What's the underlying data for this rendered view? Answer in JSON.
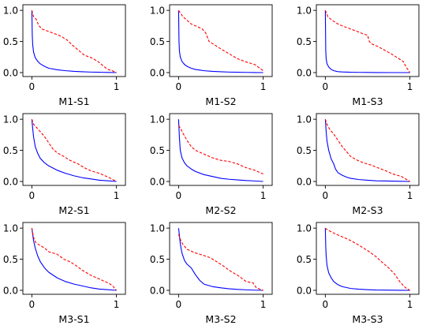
{
  "chart_data": [
    {
      "type": "line",
      "title": "M1-S1",
      "xlim": [
        0,
        1
      ],
      "ylim": [
        0,
        1
      ],
      "grid": false,
      "x_ticks": [
        "0",
        "1"
      ],
      "y_ticks": [
        "0.0",
        "0.5",
        "1.0"
      ],
      "series": [
        {
          "style": "solid",
          "color": "#0000ff",
          "x": [
            0,
            0.005,
            0.01,
            0.02,
            0.04,
            0.07,
            0.1,
            0.15,
            0.2,
            0.3,
            0.4,
            0.5,
            0.6,
            0.7,
            0.8,
            0.9,
            1.0
          ],
          "y": [
            1.0,
            0.6,
            0.45,
            0.33,
            0.24,
            0.18,
            0.14,
            0.1,
            0.07,
            0.045,
            0.03,
            0.02,
            0.013,
            0.008,
            0.005,
            0.002,
            0.0
          ]
        },
        {
          "style": "dashed",
          "color": "#ff0000",
          "x": [
            0,
            0.02,
            0.05,
            0.08,
            0.12,
            0.2,
            0.28,
            0.35,
            0.42,
            0.48,
            0.55,
            0.62,
            0.7,
            0.78,
            0.85,
            0.9,
            0.95,
            1.0
          ],
          "y": [
            1.0,
            0.9,
            0.86,
            0.76,
            0.7,
            0.66,
            0.62,
            0.58,
            0.52,
            0.44,
            0.36,
            0.28,
            0.24,
            0.18,
            0.1,
            0.05,
            0.03,
            0.0
          ]
        }
      ]
    },
    {
      "type": "line",
      "title": "M1-S2",
      "xlim": [
        0,
        1
      ],
      "ylim": [
        0,
        1
      ],
      "grid": false,
      "x_ticks": [
        "0",
        "1"
      ],
      "y_ticks": [
        "0.0",
        "0.5",
        "1.0"
      ],
      "series": [
        {
          "style": "solid",
          "color": "#0000ff",
          "x": [
            0,
            0.005,
            0.01,
            0.02,
            0.04,
            0.07,
            0.1,
            0.15,
            0.2,
            0.3,
            0.4,
            0.5,
            0.6,
            0.7,
            0.8,
            0.9,
            1.0
          ],
          "y": [
            1.0,
            0.5,
            0.35,
            0.25,
            0.18,
            0.13,
            0.1,
            0.07,
            0.05,
            0.03,
            0.02,
            0.013,
            0.008,
            0.005,
            0.003,
            0.001,
            0.0
          ]
        },
        {
          "style": "dashed",
          "color": "#ff0000",
          "x": [
            0,
            0.02,
            0.05,
            0.1,
            0.15,
            0.22,
            0.28,
            0.32,
            0.36,
            0.42,
            0.5,
            0.6,
            0.7,
            0.8,
            0.9,
            1.0
          ],
          "y": [
            1.0,
            0.96,
            0.9,
            0.84,
            0.78,
            0.74,
            0.7,
            0.64,
            0.5,
            0.45,
            0.38,
            0.3,
            0.22,
            0.17,
            0.13,
            0.03
          ]
        }
      ]
    },
    {
      "type": "line",
      "title": "M1-S3",
      "xlim": [
        0,
        1
      ],
      "ylim": [
        0,
        1
      ],
      "grid": false,
      "x_ticks": [
        "0",
        "1"
      ],
      "y_ticks": [
        "0.0",
        "0.5",
        "1.0"
      ],
      "series": [
        {
          "style": "solid",
          "color": "#0000ff",
          "x": [
            0,
            0.005,
            0.01,
            0.02,
            0.04,
            0.07,
            0.1,
            0.15,
            0.2,
            0.3,
            0.4,
            0.5,
            0.6,
            0.8,
            1.0
          ],
          "y": [
            1.0,
            0.35,
            0.22,
            0.14,
            0.09,
            0.05,
            0.03,
            0.015,
            0.01,
            0.005,
            0.003,
            0.002,
            0.001,
            0.0,
            0.0
          ]
        },
        {
          "style": "dashed",
          "color": "#ff0000",
          "x": [
            0,
            0.03,
            0.08,
            0.15,
            0.22,
            0.3,
            0.38,
            0.45,
            0.5,
            0.52,
            0.55,
            0.62,
            0.7,
            0.78,
            0.85,
            0.92,
            0.96,
            1.0
          ],
          "y": [
            1.0,
            0.9,
            0.84,
            0.78,
            0.74,
            0.7,
            0.66,
            0.62,
            0.6,
            0.5,
            0.46,
            0.42,
            0.36,
            0.3,
            0.24,
            0.18,
            0.08,
            0.0
          ]
        }
      ]
    },
    {
      "type": "line",
      "title": "M2-S1",
      "xlim": [
        0,
        1
      ],
      "ylim": [
        0,
        1
      ],
      "grid": false,
      "x_ticks": [
        "0",
        "1"
      ],
      "y_ticks": [
        "0.0",
        "0.5",
        "1.0"
      ],
      "series": [
        {
          "style": "solid",
          "color": "#0000ff",
          "x": [
            0,
            0.01,
            0.02,
            0.04,
            0.07,
            0.1,
            0.15,
            0.2,
            0.3,
            0.4,
            0.5,
            0.6,
            0.7,
            0.8,
            0.9,
            1.0
          ],
          "y": [
            1.0,
            0.85,
            0.72,
            0.56,
            0.45,
            0.37,
            0.3,
            0.25,
            0.18,
            0.13,
            0.09,
            0.06,
            0.04,
            0.02,
            0.01,
            0.0
          ]
        },
        {
          "style": "dashed",
          "color": "#ff0000",
          "x": [
            0,
            0.02,
            0.06,
            0.1,
            0.15,
            0.2,
            0.25,
            0.3,
            0.38,
            0.45,
            0.55,
            0.62,
            0.7,
            0.8,
            0.9,
            1.0
          ],
          "y": [
            1.0,
            0.92,
            0.86,
            0.8,
            0.72,
            0.62,
            0.52,
            0.46,
            0.4,
            0.34,
            0.28,
            0.22,
            0.17,
            0.13,
            0.07,
            0.0
          ]
        }
      ]
    },
    {
      "type": "line",
      "title": "M2-S2",
      "xlim": [
        0,
        1
      ],
      "ylim": [
        0,
        1
      ],
      "grid": false,
      "x_ticks": [
        "0",
        "1"
      ],
      "y_ticks": [
        "0.0",
        "0.5",
        "1.0"
      ],
      "series": [
        {
          "style": "solid",
          "color": "#0000ff",
          "x": [
            0,
            0.01,
            0.02,
            0.04,
            0.07,
            0.1,
            0.15,
            0.2,
            0.3,
            0.4,
            0.5,
            0.6,
            0.7,
            0.8,
            0.9,
            1.0
          ],
          "y": [
            1.0,
            0.7,
            0.5,
            0.38,
            0.3,
            0.25,
            0.2,
            0.16,
            0.11,
            0.08,
            0.05,
            0.035,
            0.025,
            0.015,
            0.008,
            0.0
          ]
        },
        {
          "style": "dashed",
          "color": "#ff0000",
          "x": [
            0,
            0.02,
            0.05,
            0.1,
            0.15,
            0.2,
            0.3,
            0.4,
            0.5,
            0.6,
            0.7,
            0.8,
            0.9,
            1.0
          ],
          "y": [
            0.9,
            0.86,
            0.78,
            0.66,
            0.56,
            0.5,
            0.44,
            0.38,
            0.34,
            0.32,
            0.28,
            0.22,
            0.18,
            0.12
          ]
        }
      ]
    },
    {
      "type": "line",
      "title": "M2-S3",
      "xlim": [
        0,
        1
      ],
      "ylim": [
        0,
        1
      ],
      "grid": false,
      "x_ticks": [
        "0",
        "1"
      ],
      "y_ticks": [
        "0.0",
        "0.5",
        "1.0"
      ],
      "series": [
        {
          "style": "solid",
          "color": "#0000ff",
          "x": [
            0,
            0.01,
            0.02,
            0.04,
            0.07,
            0.1,
            0.12,
            0.15,
            0.2,
            0.25,
            0.3,
            0.4,
            0.5,
            0.6,
            0.8,
            1.0
          ],
          "y": [
            1.0,
            0.8,
            0.65,
            0.5,
            0.36,
            0.28,
            0.2,
            0.14,
            0.1,
            0.07,
            0.05,
            0.03,
            0.02,
            0.01,
            0.005,
            0.0
          ]
        },
        {
          "style": "dashed",
          "color": "#ff0000",
          "x": [
            0,
            0.02,
            0.05,
            0.1,
            0.15,
            0.2,
            0.25,
            0.3,
            0.38,
            0.45,
            0.55,
            0.62,
            0.7,
            0.8,
            0.9,
            1.0
          ],
          "y": [
            1.0,
            0.92,
            0.84,
            0.76,
            0.66,
            0.56,
            0.48,
            0.4,
            0.34,
            0.3,
            0.26,
            0.22,
            0.18,
            0.12,
            0.08,
            0.0
          ]
        }
      ]
    },
    {
      "type": "line",
      "title": "M3-S1",
      "xlim": [
        0,
        1
      ],
      "ylim": [
        0,
        1
      ],
      "grid": false,
      "x_ticks": [
        "0",
        "1"
      ],
      "y_ticks": [
        "0.0",
        "0.5",
        "1.0"
      ],
      "series": [
        {
          "style": "solid",
          "color": "#0000ff",
          "x": [
            0,
            0.01,
            0.02,
            0.04,
            0.07,
            0.1,
            0.15,
            0.2,
            0.3,
            0.4,
            0.5,
            0.6,
            0.7,
            0.8,
            0.9,
            1.0
          ],
          "y": [
            1.0,
            0.9,
            0.8,
            0.68,
            0.55,
            0.46,
            0.36,
            0.29,
            0.2,
            0.14,
            0.1,
            0.07,
            0.04,
            0.02,
            0.01,
            0.0
          ]
        },
        {
          "style": "dashed",
          "color": "#ff0000",
          "x": [
            0,
            0.02,
            0.05,
            0.1,
            0.15,
            0.2,
            0.3,
            0.38,
            0.45,
            0.52,
            0.6,
            0.7,
            0.8,
            0.9,
            0.95,
            1.0
          ],
          "y": [
            1.0,
            0.85,
            0.76,
            0.72,
            0.68,
            0.62,
            0.58,
            0.5,
            0.46,
            0.4,
            0.32,
            0.24,
            0.18,
            0.12,
            0.08,
            0.0
          ]
        }
      ]
    },
    {
      "type": "line",
      "title": "M3-S2",
      "xlim": [
        0,
        1
      ],
      "ylim": [
        0,
        1
      ],
      "grid": false,
      "x_ticks": [
        "0",
        "1"
      ],
      "y_ticks": [
        "0.0",
        "0.5",
        "1.0"
      ],
      "series": [
        {
          "style": "solid",
          "color": "#0000ff",
          "x": [
            0,
            0.01,
            0.02,
            0.04,
            0.07,
            0.1,
            0.15,
            0.2,
            0.25,
            0.3,
            0.4,
            0.5,
            0.6,
            0.7,
            0.8,
            0.9,
            1.0
          ],
          "y": [
            1.0,
            0.88,
            0.75,
            0.6,
            0.48,
            0.42,
            0.36,
            0.25,
            0.16,
            0.1,
            0.06,
            0.04,
            0.025,
            0.015,
            0.008,
            0.003,
            0.0
          ]
        },
        {
          "style": "dashed",
          "color": "#ff0000",
          "x": [
            0,
            0.02,
            0.05,
            0.1,
            0.2,
            0.3,
            0.38,
            0.45,
            0.52,
            0.6,
            0.7,
            0.8,
            0.88,
            0.92,
            1.0
          ],
          "y": [
            0.9,
            0.82,
            0.74,
            0.66,
            0.6,
            0.56,
            0.52,
            0.46,
            0.4,
            0.32,
            0.24,
            0.14,
            0.12,
            0.04,
            0.0
          ]
        }
      ]
    },
    {
      "type": "line",
      "title": "M3-S3",
      "xlim": [
        0,
        1
      ],
      "ylim": [
        0,
        1
      ],
      "grid": false,
      "x_ticks": [
        "0",
        "1"
      ],
      "y_ticks": [
        "0.0",
        "0.5",
        "1.0"
      ],
      "series": [
        {
          "style": "solid",
          "color": "#0000ff",
          "x": [
            0,
            0.005,
            0.01,
            0.02,
            0.04,
            0.07,
            0.1,
            0.15,
            0.2,
            0.3,
            0.4,
            0.5,
            0.6,
            0.8,
            1.0
          ],
          "y": [
            1.0,
            0.7,
            0.55,
            0.4,
            0.28,
            0.2,
            0.14,
            0.09,
            0.06,
            0.03,
            0.018,
            0.01,
            0.005,
            0.002,
            0.0
          ]
        },
        {
          "style": "dashed",
          "color": "#ff0000",
          "x": [
            0,
            0.03,
            0.1,
            0.2,
            0.3,
            0.38,
            0.45,
            0.52,
            0.6,
            0.68,
            0.75,
            0.82,
            0.88,
            0.94,
            1.0
          ],
          "y": [
            1.0,
            0.97,
            0.92,
            0.86,
            0.8,
            0.74,
            0.68,
            0.62,
            0.54,
            0.44,
            0.36,
            0.26,
            0.14,
            0.05,
            0.0
          ]
        }
      ]
    }
  ]
}
